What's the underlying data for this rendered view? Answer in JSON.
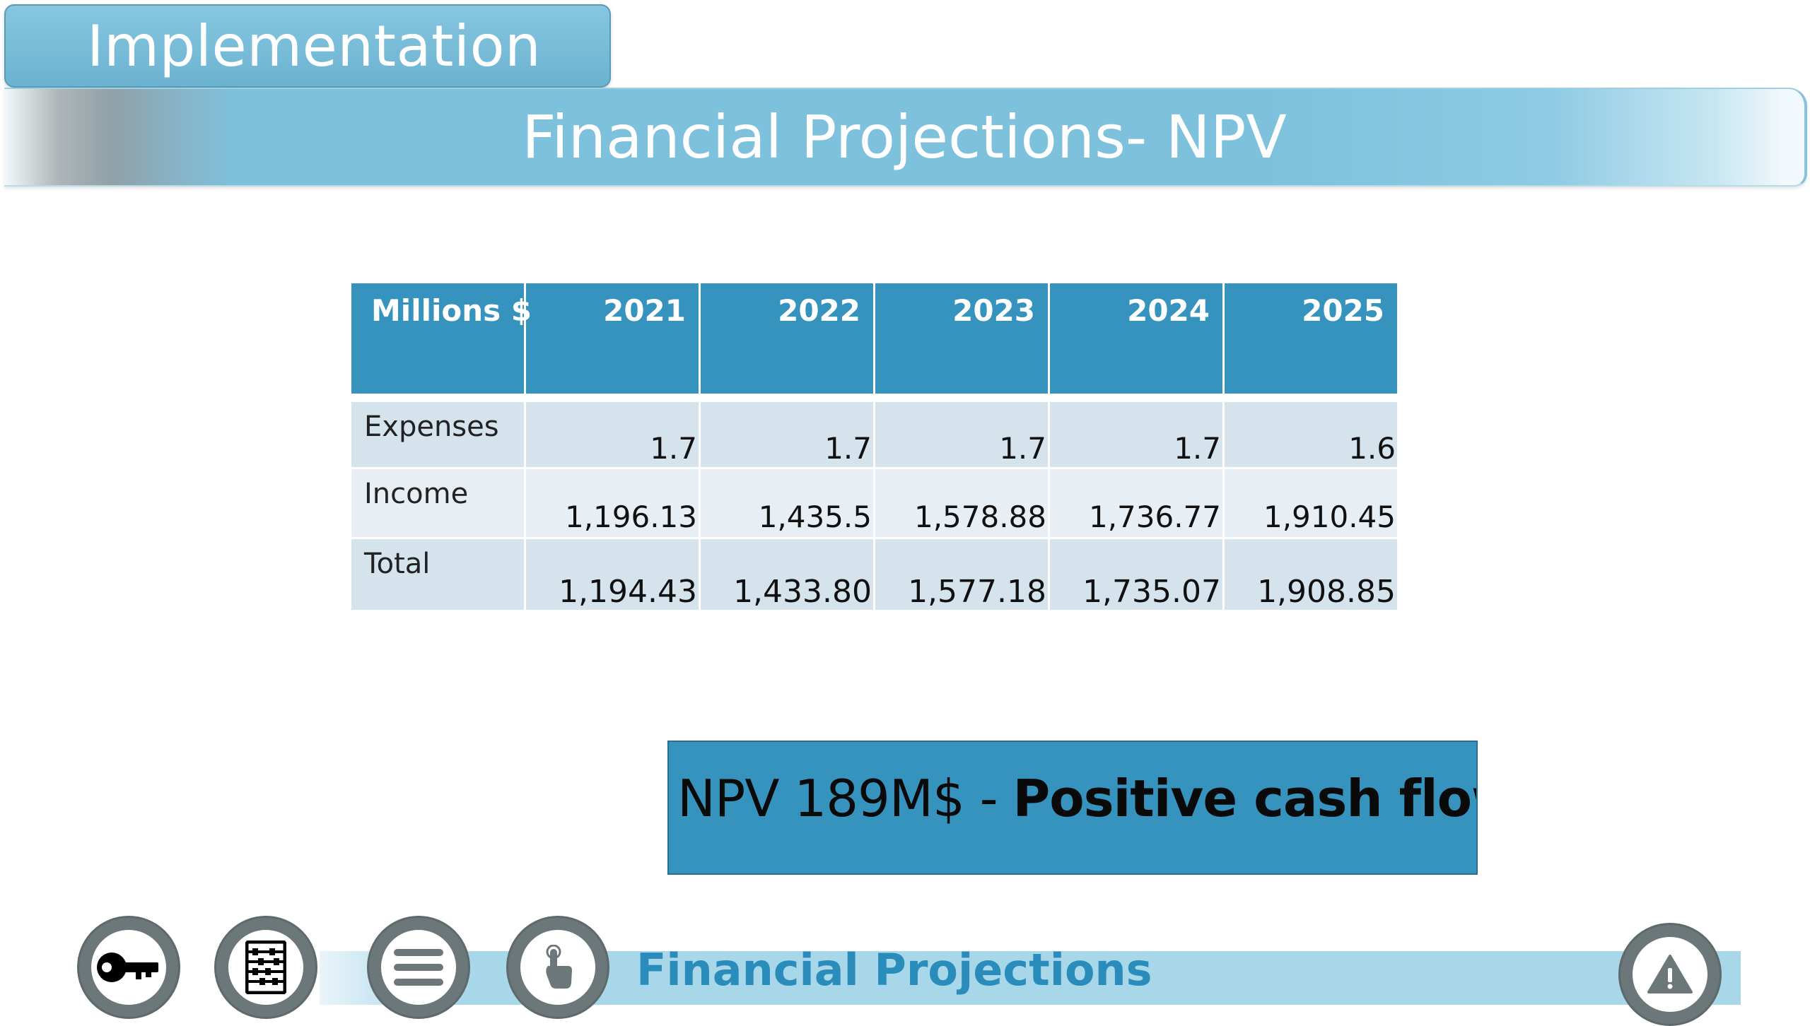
{
  "header": {
    "section_tab": "Implementation",
    "title": "Financial Projections- NPV"
  },
  "table": {
    "corner_label": "Millions $",
    "years": [
      "2021",
      "2022",
      "2023",
      "2024",
      "2025"
    ],
    "rows": [
      {
        "label": "Expenses",
        "values": [
          "1.7",
          "1.7",
          "1.7",
          "1.7",
          "1.6"
        ]
      },
      {
        "label": "Income",
        "values": [
          "1,196.13",
          "1,435.5",
          "1,578.88",
          "1,736.77",
          "1,910.45"
        ]
      },
      {
        "label": "Total",
        "values": [
          "1,194.43",
          "1,433.80",
          "1,577.18",
          "1,735.07",
          "1,908.85"
        ]
      }
    ]
  },
  "callout": {
    "prefix": "NPV 189M$  - ",
    "emphasis": "Positive cash flow"
  },
  "footer": {
    "nav_title": "Financial Projections",
    "buttons": [
      {
        "icon": "key-icon"
      },
      {
        "icon": "abacus-icon"
      },
      {
        "icon": "menu-icon"
      },
      {
        "icon": "hand-pointer-icon"
      },
      {
        "icon": "warning-icon"
      }
    ]
  },
  "colors": {
    "primary": "#3593bd",
    "header_tab": "#7ec0dc",
    "row_light": "#e8eff4",
    "row_dark": "#d4e3ec",
    "nav_circle": "#6b7779",
    "nav_title": "#2a8cba"
  }
}
